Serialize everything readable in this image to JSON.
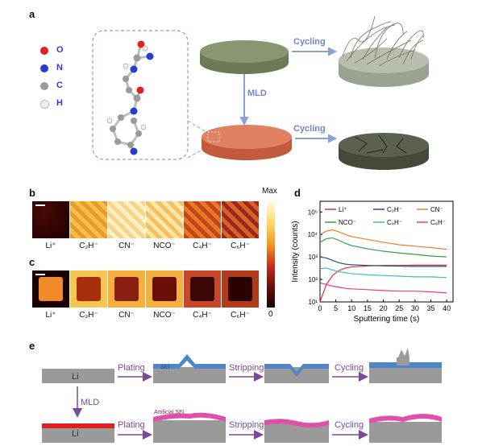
{
  "panels": {
    "a": "a",
    "b": "b",
    "c": "c",
    "d": "d",
    "e": "e"
  },
  "panel_a": {
    "atom_legend": [
      {
        "symbol": "O",
        "color": "#e32020"
      },
      {
        "symbol": "N",
        "color": "#2a3ccc"
      },
      {
        "symbol": "C",
        "color": "#9a9a9a"
      },
      {
        "symbol": "H",
        "color": "#e9e9e9"
      }
    ],
    "arrow_cycling_top": "Cycling",
    "arrow_mld": "MLD",
    "arrow_cycling_bottom": "Cycling"
  },
  "panel_bc": {
    "colorbar_max": "Max",
    "colorbar_min": "0",
    "ions": [
      "Li⁺",
      "C₂H⁻",
      "CN⁻",
      "NCO⁻",
      "C₄H⁻",
      "C₆H⁻"
    ]
  },
  "chart_data": {
    "type": "line",
    "xlabel": "Sputtering time (s)",
    "ylabel": "Intensity (counts)",
    "xlim": [
      0,
      42
    ],
    "ylim": [
      10,
      300000
    ],
    "y_scale": "log",
    "x_ticks": [
      0,
      5,
      10,
      15,
      20,
      25,
      30,
      35,
      40
    ],
    "y_ticks": [
      "10¹",
      "10²",
      "10³",
      "10⁴",
      "10⁵"
    ],
    "legend_position": "top",
    "x": [
      0,
      2,
      4,
      6,
      8,
      10,
      15,
      20,
      25,
      30,
      35,
      40
    ],
    "series": [
      {
        "name": "Li⁺",
        "color": "#e8323c",
        "values": [
          10,
          60,
          150,
          250,
          320,
          360,
          400,
          420,
          420,
          430,
          430,
          430
        ]
      },
      {
        "name": "C₂H⁻",
        "color": "#2c4a8a",
        "values": [
          1000,
          900,
          700,
          550,
          480,
          450,
          420,
          400,
          390,
          380,
          380,
          380
        ]
      },
      {
        "name": "CN⁻",
        "color": "#f07c28",
        "values": [
          10000,
          14000,
          16000,
          13000,
          10000,
          8000,
          6000,
          4500,
          3500,
          3000,
          2600,
          2200
        ]
      },
      {
        "name": "NCO⁻",
        "color": "#2ba34a",
        "values": [
          4500,
          6500,
          7000,
          5500,
          4000,
          3200,
          2300,
          1800,
          1500,
          1300,
          1100,
          1000
        ]
      },
      {
        "name": "C₄H⁻",
        "color": "#3cbcc8",
        "values": [
          300,
          320,
          260,
          220,
          200,
          180,
          160,
          150,
          140,
          130,
          130,
          120
        ]
      },
      {
        "name": "C₆H⁻",
        "color": "#e83890",
        "values": [
          70,
          60,
          50,
          45,
          40,
          38,
          35,
          32,
          30,
          30,
          28,
          25
        ]
      }
    ]
  },
  "panel_e": {
    "li_label": "Li",
    "plating": "Plating",
    "stripping": "Stripping",
    "cycling": "Cycling",
    "mld": "MLD",
    "sei": "SEI",
    "artificial_sei": "Artificial SEI"
  }
}
